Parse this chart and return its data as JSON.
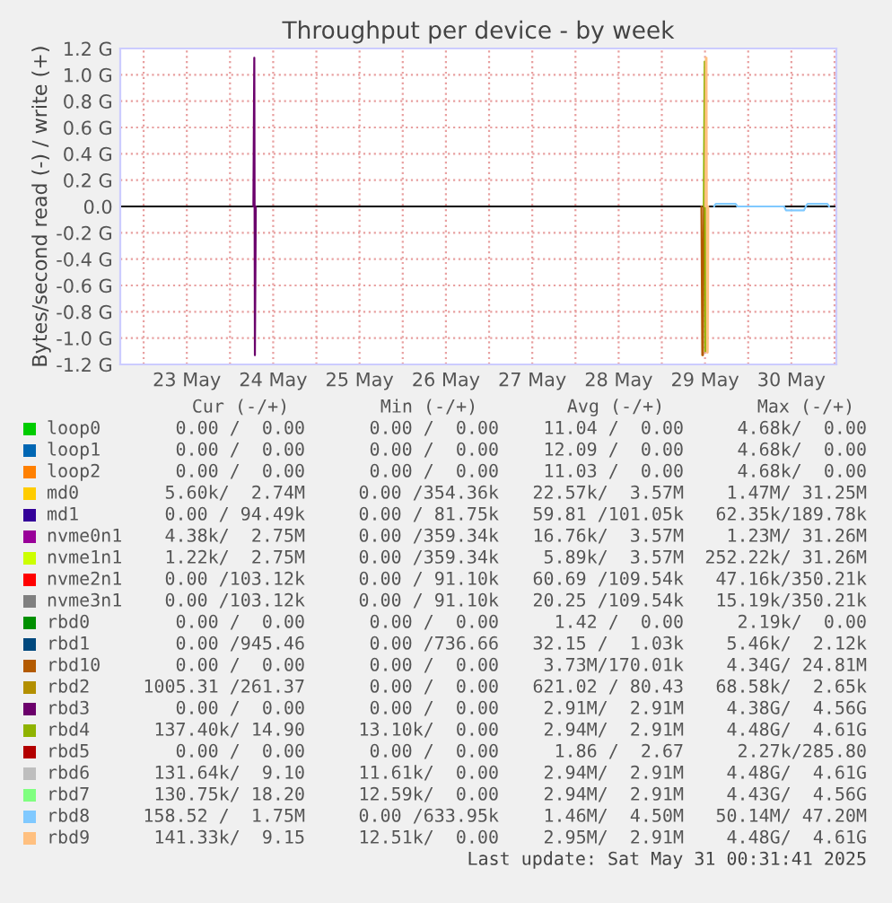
{
  "chart_data": {
    "type": "line",
    "title": "Throughput per device - by week",
    "ylabel": "Bytes/second read (-) / write (+)",
    "xlim": [
      "2025-05-22T17:30",
      "2025-05-31T00:30"
    ],
    "xticks": [
      {
        "value": "2025-05-23T00:00",
        "label": null
      },
      {
        "value": "2025-05-23T12:00",
        "label": "23 May"
      },
      {
        "value": "2025-05-24T00:00",
        "label": null
      },
      {
        "value": "2025-05-24T12:00",
        "label": "24 May"
      },
      {
        "value": "2025-05-25T00:00",
        "label": null
      },
      {
        "value": "2025-05-25T12:00",
        "label": "25 May"
      },
      {
        "value": "2025-05-26T00:00",
        "label": null
      },
      {
        "value": "2025-05-26T12:00",
        "label": "26 May"
      },
      {
        "value": "2025-05-27T00:00",
        "label": null
      },
      {
        "value": "2025-05-27T12:00",
        "label": "27 May"
      },
      {
        "value": "2025-05-28T00:00",
        "label": null
      },
      {
        "value": "2025-05-28T12:00",
        "label": "28 May"
      },
      {
        "value": "2025-05-29T00:00",
        "label": null
      },
      {
        "value": "2025-05-29T12:00",
        "label": "29 May"
      },
      {
        "value": "2025-05-30T00:00",
        "label": null
      },
      {
        "value": "2025-05-30T12:00",
        "label": "30 May"
      },
      {
        "value": "2025-05-31T00:00",
        "label": null
      }
    ],
    "ylim": [
      -1.2,
      1.2
    ],
    "yticks": [
      {
        "value": -1.2,
        "label": "-1.2 G"
      },
      {
        "value": -1.0,
        "label": "-1.0 G"
      },
      {
        "value": -0.8,
        "label": "-0.8 G"
      },
      {
        "value": -0.6,
        "label": "-0.6 G"
      },
      {
        "value": -0.4,
        "label": "-0.4 G"
      },
      {
        "value": -0.2,
        "label": "-0.2 G"
      },
      {
        "value": 0,
        "label": "0.0"
      },
      {
        "value": 0.2,
        "label": "0.2 G"
      },
      {
        "value": 0.4,
        "label": "0.4 G"
      },
      {
        "value": 0.6,
        "label": "0.6 G"
      },
      {
        "value": 0.8,
        "label": "0.8 G"
      },
      {
        "value": 1.0,
        "label": "1.0 G"
      },
      {
        "value": 1.2,
        "label": "1.2 G"
      }
    ],
    "grid": true,
    "legend": "bottom",
    "marker": "none",
    "line_style": "solid",
    "ref_lines": [
      {
        "axis": "y",
        "value": 0,
        "color": "#000000"
      }
    ],
    "series": [
      {
        "name": "loop0",
        "color": "#00cc00"
      },
      {
        "name": "loop1",
        "color": "#0066b3"
      },
      {
        "name": "loop2",
        "color": "#ff8000"
      },
      {
        "name": "md0",
        "color": "#ffcc00"
      },
      {
        "name": "md1",
        "color": "#330099"
      },
      {
        "name": "nvme0n1",
        "color": "#990099"
      },
      {
        "name": "nvme1n1",
        "color": "#ccff00"
      },
      {
        "name": "nvme2n1",
        "color": "#ff0000"
      },
      {
        "name": "nvme3n1",
        "color": "#808080"
      },
      {
        "name": "rbd0",
        "color": "#008f00"
      },
      {
        "name": "rbd1",
        "color": "#00487d"
      },
      {
        "name": "rbd10",
        "color": "#b35a00",
        "x": [
          "2025-05-29T11:00",
          "2025-05-29T11:15",
          "2025-05-29T11:25",
          "2025-05-29T11:40"
        ],
        "values": [
          0,
          -1.13,
          -1.13,
          0
        ]
      },
      {
        "name": "rbd2",
        "color": "#b38f00"
      },
      {
        "name": "rbd3",
        "color": "#6b006b",
        "x": [
          "2025-05-24T06:30",
          "2025-05-24T06:45",
          "2025-05-24T06:55",
          "2025-05-24T07:10"
        ],
        "values": [
          0,
          1.13,
          -1.13,
          0
        ]
      },
      {
        "name": "rbd4",
        "color": "#8fb300",
        "x": [
          "2025-05-29T11:40",
          "2025-05-29T11:55",
          "2025-05-29T12:05",
          "2025-05-29T12:20"
        ],
        "values": [
          0,
          1.1,
          -1.1,
          0
        ]
      },
      {
        "name": "rbd5",
        "color": "#b30000"
      },
      {
        "name": "rbd6",
        "color": "#bebebe"
      },
      {
        "name": "rbd7",
        "color": "#80ff80"
      },
      {
        "name": "rbd8",
        "color": "#80c9ff",
        "x": [
          "2025-05-29T14:30",
          "2025-05-29T15:00",
          "2025-05-29T20:30",
          "2025-05-29T21:00",
          "2025-05-30T10:00",
          "2025-05-30T10:30",
          "2025-05-30T15:30",
          "2025-05-30T16:00",
          "2025-05-30T16:30",
          "2025-05-30T22:00",
          "2025-05-30T22:30"
        ],
        "values": [
          0,
          0.02,
          0.02,
          0,
          0,
          -0.03,
          -0.03,
          0,
          0.02,
          0.02,
          0
        ]
      },
      {
        "name": "rbd9",
        "color": "#ffc080",
        "x": [
          "2025-05-29T12:05",
          "2025-05-29T12:15",
          "2025-05-29T12:25",
          "2025-05-29T12:35",
          "2025-05-29T12:45",
          "2025-05-29T12:55"
        ],
        "values": [
          0,
          1.13,
          1.13,
          -1.11,
          -1.11,
          0
        ]
      }
    ],
    "annotations": [
      "Cur (-/+)",
      "Min (-/+)",
      "Avg (-/+)",
      "Max (-/+)",
      "0.00 /  0.00",
      "0.00 /  0.00",
      "11.04 /  0.00",
      "4.68k/  0.00",
      "0.00 /  0.00",
      "0.00 /  0.00",
      "12.09 /  0.00",
      "4.68k/  0.00",
      "0.00 /  0.00",
      "0.00 /  0.00",
      "11.03 /  0.00",
      "4.68k/  0.00",
      "5.60k/  2.74M",
      "0.00 /354.36k",
      "22.57k/  3.57M",
      "1.47M/ 31.25M",
      "0.00 / 94.49k",
      "0.00 / 81.75k",
      "59.81 /101.05k",
      "62.35k/189.78k",
      "4.38k/  2.75M",
      "0.00 /359.34k",
      "16.76k/  3.57M",
      "1.23M/ 31.26M",
      "1.22k/  2.75M",
      "0.00 /359.34k",
      "5.89k/  3.57M",
      "252.22k/ 31.26M",
      "0.00 /103.12k",
      "0.00 / 91.10k",
      "60.69 /109.54k",
      "47.16k/350.21k",
      "0.00 /103.12k",
      "0.00 / 91.10k",
      "20.25 /109.54k",
      "15.19k/350.21k",
      "0.00 /  0.00",
      "0.00 /  0.00",
      "1.42 /  0.00",
      "2.19k/  0.00",
      "0.00 /945.46",
      "0.00 /736.66",
      "32.15 /  1.03k",
      "5.46k/  2.12k",
      "0.00 /  0.00",
      "0.00 /  0.00",
      "3.73M/170.01k",
      "4.34G/ 24.81M",
      "1005.31 /261.37",
      "0.00 /  0.00",
      "621.02 / 80.43",
      "68.58k/  2.65k",
      "0.00 /  0.00",
      "0.00 /  0.00",
      "2.91M/  2.91M",
      "4.38G/  4.56G",
      "137.40k/ 14.90",
      "13.10k/  0.00",
      "2.94M/  2.91M",
      "4.48G/  4.61G",
      "0.00 /  0.00",
      "0.00 /  0.00",
      "1.86 /  2.67",
      "2.27k/285.80",
      "131.64k/  9.10",
      "11.61k/  0.00",
      "2.94M/  2.91M",
      "4.48G/  4.61G",
      "130.75k/ 18.20",
      "12.59k/  0.00",
      "2.94M/  2.91M",
      "4.43G/  4.56G",
      "158.52 /  1.75M",
      "0.00 /633.95k",
      "1.46M/  4.50M",
      "50.14M/ 47.20M",
      "141.33k/  9.15",
      "12.51k/  0.00",
      "2.95M/  2.91M",
      "4.48G/  4.61G",
      "Last update: Sat May 31 00:31:41 2025"
    ]
  }
}
